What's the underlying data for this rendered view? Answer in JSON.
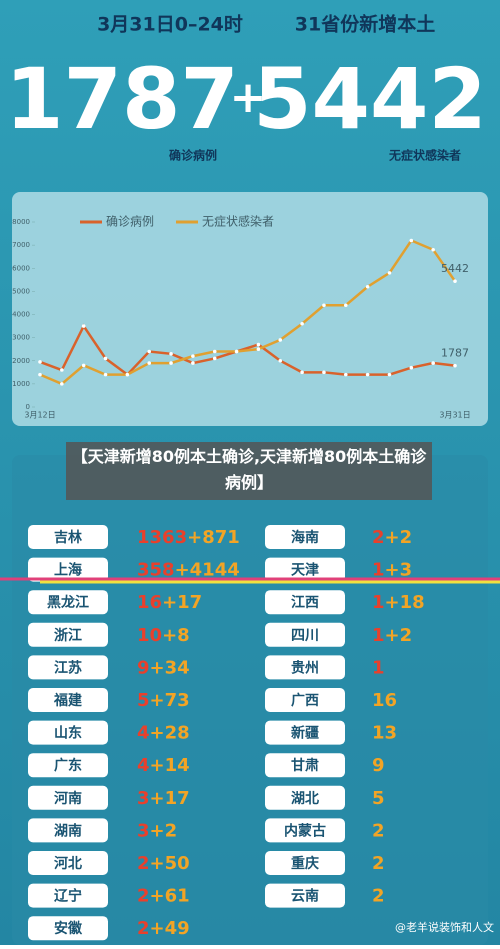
{
  "header": {
    "date": "3月31日0–24时",
    "subtitle": "31省份新增本土",
    "confirmed_total": "1787",
    "plus": "+",
    "asymptomatic_total": "5442",
    "confirmed_label": "确诊病例",
    "asymptomatic_label": "无症状感染者"
  },
  "chart_data": {
    "type": "line",
    "categories": [
      "3月12日",
      null,
      null,
      null,
      null,
      null,
      null,
      null,
      null,
      null,
      null,
      null,
      null,
      null,
      null,
      null,
      null,
      null,
      null,
      "3月31日"
    ],
    "series": [
      {
        "name": "确诊病例",
        "color": "#d9622b",
        "values": [
          1950,
          1600,
          3500,
          2100,
          1400,
          2400,
          2300,
          1900,
          2100,
          2400,
          2700,
          2000,
          1500,
          1500,
          1400,
          1400,
          1400,
          1700,
          1900,
          1787
        ]
      },
      {
        "name": "无症状感染者",
        "color": "#e0a030",
        "values": [
          1400,
          1000,
          1800,
          1400,
          1400,
          1900,
          1900,
          2200,
          2400,
          2400,
          2500,
          2900,
          3600,
          4400,
          4400,
          5200,
          5800,
          7200,
          6800,
          5442
        ]
      }
    ],
    "ylim": [
      0,
      8000
    ],
    "yticks": [
      0,
      1000,
      2000,
      3000,
      4000,
      5000,
      6000,
      7000,
      8000
    ],
    "grid": false,
    "legend": "top"
  },
  "caption": "【天津新增80例本土确诊,天津新增80例本土确诊病例】",
  "table": {
    "left": [
      {
        "name": "吉林",
        "confirmed": "1363",
        "asymptomatic": "+871"
      },
      {
        "name": "上海",
        "confirmed": "358",
        "asymptomatic": "+4144"
      },
      {
        "name": "黑龙江",
        "confirmed": "16",
        "asymptomatic": "+17"
      },
      {
        "name": "浙江",
        "confirmed": "10",
        "asymptomatic": "+8"
      },
      {
        "name": "江苏",
        "confirmed": "9",
        "asymptomatic": "+34"
      },
      {
        "name": "福建",
        "confirmed": "5",
        "asymptomatic": "+73"
      },
      {
        "name": "山东",
        "confirmed": "4",
        "asymptomatic": "+28"
      },
      {
        "name": "广东",
        "confirmed": "4",
        "asymptomatic": "+14"
      },
      {
        "name": "河南",
        "confirmed": "3",
        "asymptomatic": "+17"
      },
      {
        "name": "湖南",
        "confirmed": "3",
        "asymptomatic": "+2"
      },
      {
        "name": "河北",
        "confirmed": "2",
        "asymptomatic": "+50"
      },
      {
        "name": "辽宁",
        "confirmed": "2",
        "asymptomatic": "+61"
      },
      {
        "name": "安徽",
        "confirmed": "2",
        "asymptomatic": "+49"
      }
    ],
    "right": [
      {
        "name": "海南",
        "confirmed": "2",
        "asymptomatic": "+2"
      },
      {
        "name": "天津",
        "confirmed": "1",
        "asymptomatic": "+3"
      },
      {
        "name": "江西",
        "confirmed": "1",
        "asymptomatic": "+18"
      },
      {
        "name": "四川",
        "confirmed": "1",
        "asymptomatic": "+2"
      },
      {
        "name": "贵州",
        "confirmed": "1"
      },
      {
        "name": "广西",
        "asymptomatic": "16"
      },
      {
        "name": "新疆",
        "asymptomatic": "13"
      },
      {
        "name": "甘肃",
        "asymptomatic": "9"
      },
      {
        "name": "湖北",
        "asymptomatic": "5"
      },
      {
        "name": "内蒙古",
        "asymptomatic": "2"
      },
      {
        "name": "重庆",
        "asymptomatic": "2"
      },
      {
        "name": "云南",
        "asymptomatic": "2"
      }
    ]
  },
  "watermark": "@老羊说装饰和人文"
}
